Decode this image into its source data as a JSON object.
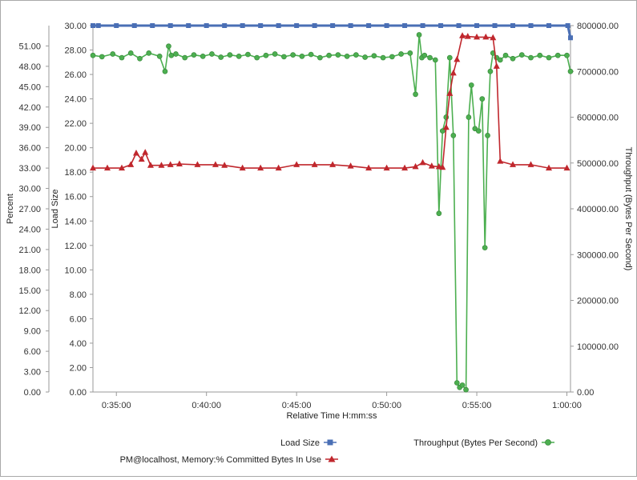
{
  "chart_data": {
    "type": "line",
    "title": "",
    "xlabel": "Relative Time H:mm:ss",
    "x_ticks": [
      "0:35:00",
      "0:40:00",
      "0:45:00",
      "0:50:00",
      "0:55:00",
      "1:00:00"
    ],
    "x_tick_minutes": [
      35,
      40,
      45,
      50,
      55,
      60
    ],
    "xlim_minutes": [
      33.7,
      60.2
    ],
    "axes": {
      "percent": {
        "label": "Percent",
        "ticks": [
          "0.00",
          "3.00",
          "6.00",
          "9.00",
          "12.00",
          "15.00",
          "18.00",
          "21.00",
          "24.00",
          "27.00",
          "30.00",
          "33.00",
          "36.00",
          "39.00",
          "42.00",
          "45.00",
          "48.00",
          "51.00"
        ],
        "range": [
          0,
          54
        ]
      },
      "load": {
        "label": "Load Size",
        "ticks": [
          "0.00",
          "2.00",
          "4.00",
          "6.00",
          "8.00",
          "10.00",
          "12.00",
          "14.00",
          "16.00",
          "18.00",
          "20.00",
          "22.00",
          "24.00",
          "26.00",
          "28.00",
          "30.00"
        ],
        "range": [
          0,
          30
        ]
      },
      "throughput": {
        "label": "Throughput (Bytes Per Second)",
        "ticks": [
          "0.00",
          "100000.00",
          "200000.00",
          "300000.00",
          "400000.00",
          "500000.00",
          "600000.00",
          "700000.00",
          "800000.00"
        ],
        "range": [
          0,
          800000
        ]
      }
    },
    "grid": false,
    "legend_placement": "bottom",
    "series": [
      {
        "name": "Load Size",
        "axis": "load",
        "color": "#4a6fb5",
        "marker": "square",
        "x": [
          33.7,
          34,
          35,
          36,
          37,
          38,
          39,
          40,
          41,
          42,
          43,
          44,
          45,
          46,
          47,
          48,
          49,
          50,
          51,
          52,
          53,
          54,
          55,
          56,
          57,
          58,
          59,
          60.05,
          60.2
        ],
        "values": [
          30,
          30,
          30,
          30,
          30,
          30,
          30,
          30,
          30,
          30,
          30,
          30,
          30,
          30,
          30,
          30,
          30,
          30,
          30,
          30,
          30,
          30,
          30,
          30,
          30,
          30,
          30,
          30,
          29
        ]
      },
      {
        "name": "PM@localhost, Memory:% Committed Bytes In Use",
        "axis": "percent",
        "color": "#c0272d",
        "marker": "triangle",
        "x": [
          33.7,
          34.5,
          35.3,
          35.8,
          36.1,
          36.4,
          36.6,
          36.9,
          37.5,
          38.0,
          38.5,
          39.5,
          40.5,
          41.0,
          42.0,
          43.0,
          44.0,
          45.0,
          46.0,
          47.0,
          48.0,
          49.0,
          50.0,
          51.0,
          51.6,
          52.0,
          52.5,
          52.9,
          53.1,
          53.3,
          53.5,
          53.7,
          53.9,
          54.2,
          54.5,
          55.0,
          55.5,
          55.9,
          56.1,
          56.3,
          57.0,
          58.0,
          59.0,
          60.0
        ],
        "values": [
          33.0,
          33.0,
          33.0,
          33.5,
          35.2,
          34.3,
          35.3,
          33.4,
          33.4,
          33.5,
          33.6,
          33.5,
          33.5,
          33.4,
          33.0,
          33.0,
          33.0,
          33.5,
          33.5,
          33.5,
          33.3,
          33.0,
          33.0,
          33.0,
          33.2,
          33.8,
          33.3,
          33.2,
          33.1,
          39.0,
          44.0,
          47.0,
          49.0,
          52.5,
          52.4,
          52.3,
          52.3,
          52.2,
          48.0,
          34.0,
          33.5,
          33.5,
          33.0,
          33.0
        ]
      },
      {
        "name": "Throughput (Bytes Per Second)",
        "axis": "throughput",
        "color": "#4caf50",
        "marker": "circle",
        "x": [
          33.7,
          34.2,
          34.8,
          35.3,
          35.8,
          36.3,
          36.8,
          37.4,
          37.7,
          37.9,
          38.05,
          38.3,
          38.8,
          39.3,
          39.8,
          40.3,
          40.8,
          41.3,
          41.8,
          42.3,
          42.8,
          43.3,
          43.8,
          44.3,
          44.8,
          45.3,
          45.8,
          46.3,
          46.8,
          47.3,
          47.8,
          48.3,
          48.8,
          49.3,
          49.8,
          50.3,
          50.8,
          51.3,
          51.6,
          51.8,
          51.95,
          52.1,
          52.4,
          52.7,
          52.9,
          53.1,
          53.3,
          53.5,
          53.7,
          53.9,
          54.05,
          54.2,
          54.4,
          54.55,
          54.7,
          54.9,
          55.1,
          55.3,
          55.45,
          55.6,
          55.75,
          55.9,
          56.1,
          56.3,
          56.6,
          57.0,
          57.5,
          58.0,
          58.5,
          59.0,
          59.5,
          60.0,
          60.2
        ],
        "values": [
          735000,
          732000,
          738000,
          730000,
          740000,
          728000,
          740000,
          733000,
          700000,
          755000,
          735000,
          738000,
          730000,
          736000,
          733000,
          738000,
          731000,
          736000,
          733000,
          737000,
          730000,
          735000,
          738000,
          732000,
          736000,
          733000,
          737000,
          730000,
          735000,
          736000,
          733000,
          736000,
          731000,
          734000,
          730000,
          732000,
          738000,
          740000,
          650000,
          780000,
          730000,
          735000,
          730000,
          725000,
          390000,
          570000,
          600000,
          730000,
          560000,
          20000,
          10000,
          15000,
          5000,
          600000,
          670000,
          575000,
          570000,
          640000,
          315000,
          560000,
          700000,
          740000,
          730000,
          725000,
          735000,
          728000,
          736000,
          730000,
          735000,
          730000,
          735000,
          735000,
          700000
        ]
      }
    ]
  }
}
